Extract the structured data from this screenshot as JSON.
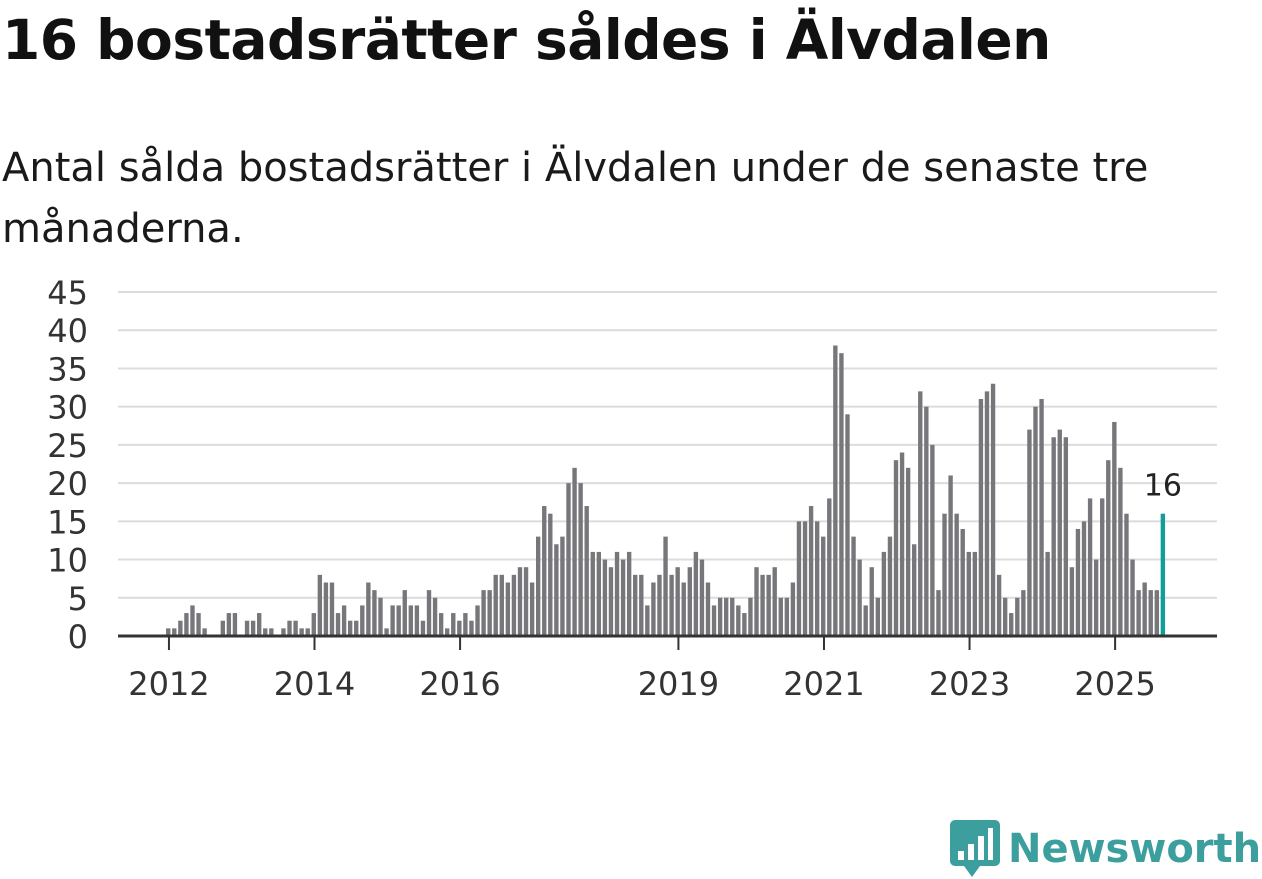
{
  "header": {
    "title": "16 bostadsrätter såldes i Älvdalen",
    "subtitle": "Antal sålda bostadsrätter i Älvdalen under de senaste tre månaderna."
  },
  "brand": {
    "name": "Newsworthy",
    "color": "#3d9e9e",
    "icon": "newsworthy-logo-icon"
  },
  "colors": {
    "bar": "#77767b",
    "highlight": "#119d9a",
    "grid": "#dcdcdc",
    "axis": "#333333"
  },
  "chart_data": {
    "type": "bar",
    "title": "16 bostadsrätter såldes i Älvdalen",
    "subtitle": "Antal sålda bostadsrätter i Älvdalen under de senaste tre månaderna.",
    "xlabel": "",
    "ylabel": "",
    "ylim": [
      0,
      45
    ],
    "yticks": [
      0,
      5,
      10,
      15,
      20,
      25,
      30,
      35,
      40,
      45
    ],
    "xlim": [
      2011.3,
      2026.4
    ],
    "xtick_labels": [
      {
        "label": "2012",
        "x": 2012.0
      },
      {
        "label": "2014",
        "x": 2014.0
      },
      {
        "label": "2016",
        "x": 2016.0
      },
      {
        "label": "2019",
        "x": 2019.0
      },
      {
        "label": "2021",
        "x": 2021.0
      },
      {
        "label": "2023",
        "x": 2023.0
      },
      {
        "label": "2025",
        "x": 2025.0
      }
    ],
    "grid": true,
    "first_period": 2011.99,
    "period_step": 0.08333,
    "values": [
      1,
      1,
      2,
      3,
      4,
      3,
      1,
      0,
      0,
      2,
      3,
      3,
      0,
      2,
      2,
      3,
      1,
      1,
      0,
      1,
      2,
      2,
      1,
      1,
      3,
      8,
      7,
      7,
      3,
      4,
      2,
      2,
      4,
      7,
      6,
      5,
      1,
      4,
      4,
      6,
      4,
      4,
      2,
      6,
      5,
      3,
      1,
      3,
      2,
      3,
      2,
      4,
      6,
      6,
      8,
      8,
      7,
      8,
      9,
      9,
      7,
      13,
      17,
      16,
      12,
      13,
      20,
      22,
      20,
      17,
      11,
      11,
      10,
      9,
      11,
      10,
      11,
      8,
      8,
      4,
      7,
      8,
      13,
      8,
      9,
      7,
      9,
      11,
      10,
      7,
      4,
      5,
      5,
      5,
      4,
      3,
      5,
      9,
      8,
      8,
      9,
      5,
      5,
      7,
      15,
      15,
      17,
      15,
      13,
      18,
      38,
      37,
      29,
      13,
      10,
      4,
      9,
      5,
      11,
      13,
      23,
      24,
      22,
      12,
      32,
      30,
      25,
      6,
      16,
      21,
      16,
      14,
      11,
      11,
      31,
      32,
      33,
      8,
      5,
      3,
      5,
      6,
      27,
      30,
      31,
      11,
      26,
      27,
      26,
      9,
      14,
      15,
      18,
      10,
      18,
      23,
      28,
      22,
      16,
      10,
      6,
      7,
      6,
      6,
      16
    ],
    "highlight_last": true,
    "annotation": {
      "text": "16",
      "value": 16
    }
  }
}
